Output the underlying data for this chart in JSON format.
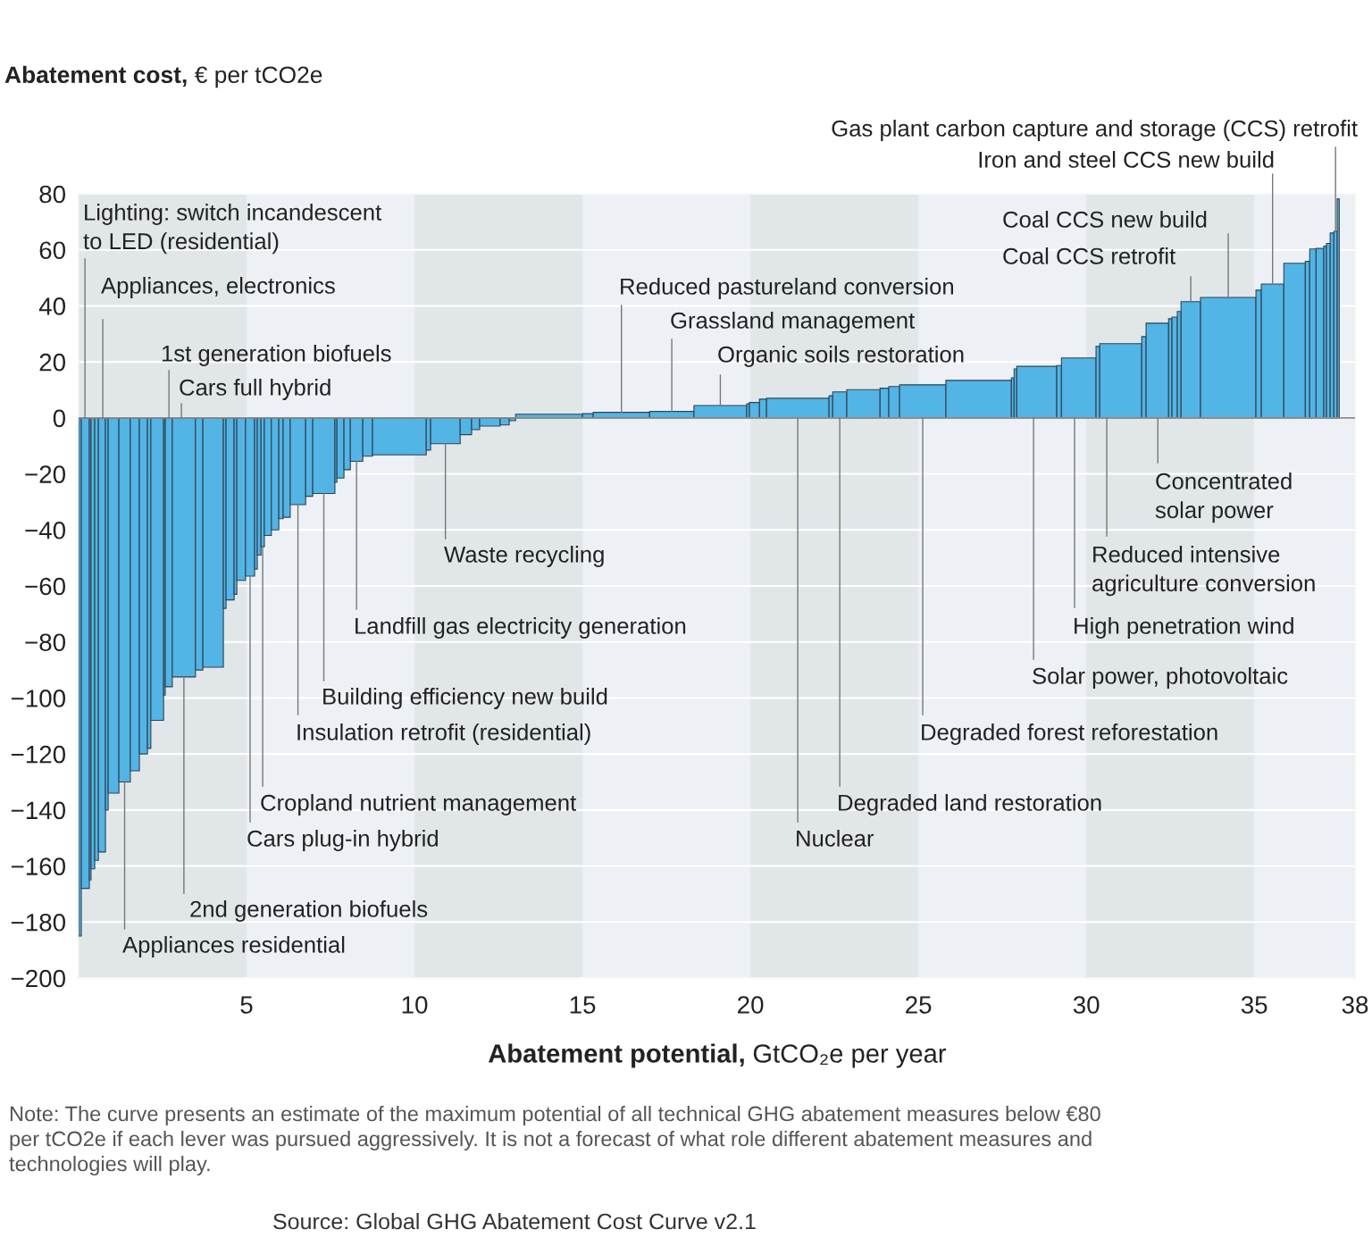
{
  "chart_data": {
    "type": "bar",
    "ylabel": "Abatement cost, € per tCO2e",
    "xlabel": "Abatement potential, GtCO₂e per year",
    "x": [
      0.04,
      0.2,
      0.345,
      0.425,
      0.535,
      0.695,
      0.84,
      1.04,
      1.37,
      1.675,
      1.93,
      2.1,
      2.34,
      2.555,
      2.685,
      3.135,
      3.59,
      4.005,
      4.35,
      4.51,
      4.67,
      4.84,
      5.105,
      5.28,
      5.375,
      5.48,
      5.635,
      5.85,
      6.025,
      6.195,
      6.53,
      6.865,
      7.3,
      7.66,
      7.795,
      7.995,
      8.275,
      8.605,
      9.55,
      10.415,
      10.92,
      11.53,
      11.82,
      12.245,
      12.685,
      12.915,
      14.005,
      15.16,
      16.16,
      17.66,
      19.105,
      19.93,
      20.12,
      20.375,
      21.41,
      22.395,
      22.66,
      23.365,
      23.99,
      24.28,
      25.13,
      26.795,
      27.81,
      27.89,
      28.525,
      29.19,
      29.775,
      30.345,
      31.025,
      31.715,
      32.115,
      32.5,
      32.63,
      32.765,
      33.11,
      34.225,
      35.13,
      35.545,
      36.2,
      36.585,
      36.745,
      36.955,
      37.11,
      37.205,
      37.315,
      37.42,
      37.5
    ],
    "values": [
      -185,
      -168,
      -165,
      -161,
      -158,
      -155,
      -140,
      -134,
      -130,
      -126,
      -120,
      -118,
      -108,
      -99,
      -96,
      -92.5,
      -90,
      -89,
      -68,
      -65,
      -63,
      -58,
      -56.5,
      -54,
      -49,
      -46,
      -42,
      -40,
      -36,
      -35.5,
      -31,
      -28,
      -27,
      -23,
      -21.5,
      -18.5,
      -15.5,
      -13.7,
      -13.2,
      -11.5,
      -9.2,
      -6,
      -4.2,
      -2.9,
      -2.5,
      -1,
      1.3,
      1.5,
      2,
      2.3,
      4.4,
      5,
      5.5,
      6.7,
      7,
      7.9,
      9.3,
      10.1,
      10.6,
      11.2,
      11.8,
      13.4,
      14.3,
      17.5,
      18.4,
      18.7,
      21.4,
      25.5,
      26.5,
      29,
      33.8,
      35.4,
      36,
      38,
      41.5,
      43,
      45.6,
      47.8,
      55.2,
      55.9,
      60.3,
      60.5,
      61.3,
      62.3,
      66,
      66.6,
      78.2
    ],
    "color": "#53b4e6",
    "xlim": [
      0,
      38
    ],
    "xticks": [
      5,
      10,
      15,
      20,
      25,
      30,
      35,
      38
    ],
    "ylim": [
      -200,
      80
    ],
    "yticks": [
      {
        "value": -200,
        "label": "−200"
      },
      {
        "value": -180,
        "label": "−180"
      },
      {
        "value": -160,
        "label": "−160"
      },
      {
        "value": -140,
        "label": "−140"
      },
      {
        "value": -120,
        "label": "−120"
      },
      {
        "value": -100,
        "label": "−100"
      },
      {
        "value": -80,
        "label": "−80"
      },
      {
        "value": -60,
        "label": "−60"
      },
      {
        "value": -40,
        "label": "−40"
      },
      {
        "value": -20,
        "label": "−20"
      },
      0,
      20,
      40,
      60,
      80
    ],
    "grid": "y",
    "ref_lines": [
      {
        "axis": "y",
        "value": 0,
        "color": "#8a8a8a"
      }
    ],
    "bands": [
      {
        "axis": "x",
        "from": 0,
        "to": 5,
        "color": "#e1e6e9"
      },
      {
        "axis": "x",
        "from": 10,
        "to": 15,
        "color": "#e1e6e9"
      },
      {
        "axis": "x",
        "from": 20,
        "to": 25,
        "color": "#e1e6e9"
      },
      {
        "axis": "x",
        "from": 30,
        "to": 35,
        "color": "#e1e6e9"
      }
    ],
    "annotations": [
      {
        "text": "Lighting: switch incandescent\nto LED (residential)",
        "x": 0.19,
        "y": 0
      },
      {
        "text": "Appliances, electronics",
        "x": 0.72,
        "y": 0
      },
      {
        "text": "1st generation biofuels",
        "x": 2.69,
        "y": 0
      },
      {
        "text": "Cars full hybrid",
        "x": 3.06,
        "y": 0
      },
      {
        "text": "Appliances residential",
        "x": 1.37,
        "y": -130
      },
      {
        "text": "2nd generation biofuels",
        "x": 3.135,
        "y": -92.5
      },
      {
        "text": "Cars plug-in hybrid",
        "x": 5.105,
        "y": -56.5
      },
      {
        "text": "Cropland nutrient management",
        "x": 5.48,
        "y": -46
      },
      {
        "text": "Insulation retrofit (residential)",
        "x": 6.53,
        "y": -31
      },
      {
        "text": "Building efficiency new build",
        "x": 7.3,
        "y": -27
      },
      {
        "text": "Landfill gas electricity generation",
        "x": 8.275,
        "y": -15.5
      },
      {
        "text": "Waste recycling",
        "x": 10.92,
        "y": -9.2
      },
      {
        "text": "Reduced pastureland conversion",
        "x": 16.16,
        "y": 2
      },
      {
        "text": "Grassland management",
        "x": 17.66,
        "y": 2.3
      },
      {
        "text": "Organic soils restoration",
        "x": 19.105,
        "y": 4.4
      },
      {
        "text": "Nuclear",
        "x": 21.41,
        "y": 0
      },
      {
        "text": "Degraded land restoration",
        "x": 22.66,
        "y": 0
      },
      {
        "text": "Degraded forest reforestation",
        "x": 25.13,
        "y": 0
      },
      {
        "text": "Solar power, photovoltaic",
        "x": 28.43,
        "y": 0
      },
      {
        "text": "High penetration wind",
        "x": 29.65,
        "y": 0
      },
      {
        "text": "Reduced intensive\nagriculture conversion",
        "x": 30.61,
        "y": 0
      },
      {
        "text": "Concentrated\nsolar power",
        "x": 32.13,
        "y": 0
      },
      {
        "text": "Coal CCS retrofit",
        "x": 33.11,
        "y": 41.5
      },
      {
        "text": "Coal CCS new build",
        "x": 34.225,
        "y": 43
      },
      {
        "text": "Iron and steel CCS new build",
        "x": 35.545,
        "y": 47.8
      },
      {
        "text": "Gas plant carbon capture and storage (CCS) retrofit",
        "x": 37.42,
        "y": 66.6
      },
      "Note: The curve presents an estimate of the maximum potential of all technical GHG abatement measures below €80\nper tCO2e if each lever was pursued aggressively. It is not a forecast of what role different abatement measures and\ntechnologies will play.",
      "Source: Global GHG Abatement Cost Curve v2.1"
    ]
  }
}
